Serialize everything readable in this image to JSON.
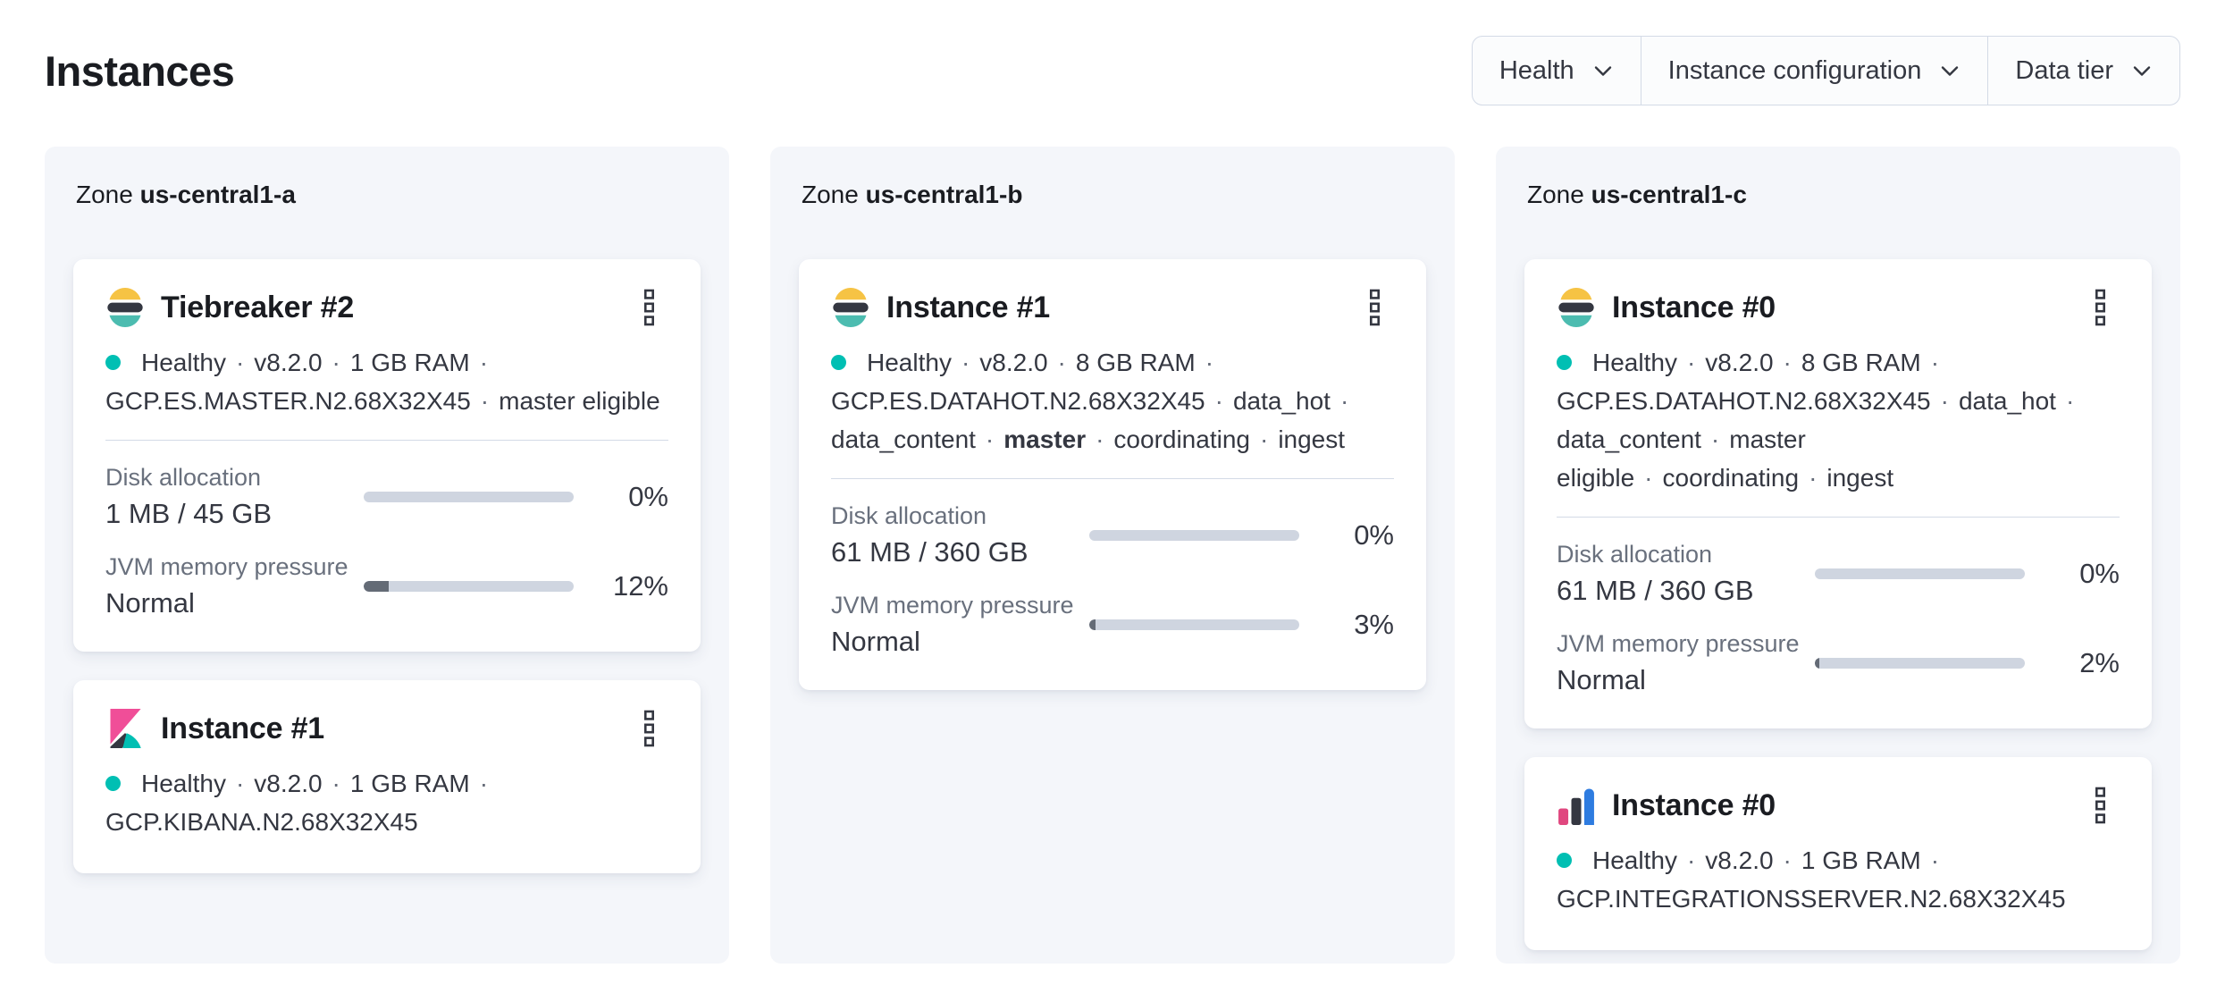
{
  "page": {
    "title": "Instances"
  },
  "filters": [
    {
      "label": "Health",
      "icon": "chevron-down"
    },
    {
      "label": "Instance configuration",
      "icon": "chevron-down"
    },
    {
      "label": "Data tier",
      "icon": "chevron-down"
    }
  ],
  "colors": {
    "healthy_dot": "#00BFB3",
    "progress_track": "#CFD5E0",
    "progress_fill": "#646B76",
    "panel_bg": "#F4F6FA",
    "es_logo_yellow": "#F6C344",
    "es_logo_dark": "#343741",
    "es_logo_teal": "#4CBCB0",
    "kibana_pink": "#F04E98",
    "kibana_dark": "#343741",
    "kibana_teal": "#00BFB3",
    "intserver_pink": "#E0477F",
    "intserver_dark": "#343741",
    "intserver_blue": "#2E7CE0"
  },
  "zones": [
    {
      "label_prefix": "Zone",
      "name": "us-central1-a",
      "cards": [
        {
          "icon": "elasticsearch-logo",
          "title": "Tiebreaker #2",
          "status_lines": [
            {
              "health_dot": true,
              "trailing_separator": true,
              "segments": [
                {
                  "text": "Healthy"
                },
                {
                  "text": "v8.2.0"
                },
                {
                  "text": "1 GB RAM"
                }
              ]
            },
            {
              "health_dot": false,
              "trailing_separator": false,
              "segments": [
                {
                  "text": "GCP.ES.MASTER.N2.68X32X45"
                },
                {
                  "text": "master eligible"
                }
              ]
            }
          ],
          "metrics": [
            {
              "label": "Disk allocation",
              "value": "1 MB / 45 GB",
              "percent_label": "0%",
              "percent_fill": 0
            },
            {
              "label": "JVM memory pressure",
              "value": "Normal",
              "percent_label": "12%",
              "percent_fill": 12
            }
          ]
        },
        {
          "icon": "kibana-logo",
          "title": "Instance #1",
          "status_lines": [
            {
              "health_dot": true,
              "trailing_separator": true,
              "segments": [
                {
                  "text": "Healthy"
                },
                {
                  "text": "v8.2.0"
                },
                {
                  "text": "1 GB RAM"
                }
              ]
            },
            {
              "health_dot": false,
              "trailing_separator": false,
              "segments": [
                {
                  "text": "GCP.KIBANA.N2.68X32X45"
                }
              ]
            }
          ],
          "metrics": []
        }
      ]
    },
    {
      "label_prefix": "Zone",
      "name": "us-central1-b",
      "cards": [
        {
          "icon": "elasticsearch-logo",
          "title": "Instance #1",
          "status_lines": [
            {
              "health_dot": true,
              "trailing_separator": true,
              "segments": [
                {
                  "text": "Healthy"
                },
                {
                  "text": "v8.2.0"
                },
                {
                  "text": "8 GB RAM"
                }
              ]
            },
            {
              "health_dot": false,
              "trailing_separator": true,
              "segments": [
                {
                  "text": "GCP.ES.DATAHOT.N2.68X32X45"
                },
                {
                  "text": "data_hot"
                }
              ]
            },
            {
              "health_dot": false,
              "trailing_separator": false,
              "segments": [
                {
                  "text": "data_content"
                },
                {
                  "text": "master",
                  "bold": true
                },
                {
                  "text": "coordinating"
                },
                {
                  "text": "ingest"
                }
              ]
            }
          ],
          "metrics": [
            {
              "label": "Disk allocation",
              "value": "61 MB / 360 GB",
              "percent_label": "0%",
              "percent_fill": 0
            },
            {
              "label": "JVM memory pressure",
              "value": "Normal",
              "percent_label": "3%",
              "percent_fill": 3
            }
          ]
        }
      ]
    },
    {
      "label_prefix": "Zone",
      "name": "us-central1-c",
      "cards": [
        {
          "icon": "elasticsearch-logo",
          "title": "Instance #0",
          "status_lines": [
            {
              "health_dot": true,
              "trailing_separator": true,
              "segments": [
                {
                  "text": "Healthy"
                },
                {
                  "text": "v8.2.0"
                },
                {
                  "text": "8 GB RAM"
                }
              ]
            },
            {
              "health_dot": false,
              "trailing_separator": true,
              "segments": [
                {
                  "text": "GCP.ES.DATAHOT.N2.68X32X45"
                },
                {
                  "text": "data_hot"
                }
              ]
            },
            {
              "health_dot": false,
              "trailing_separator": false,
              "segments": [
                {
                  "text": "data_content"
                },
                {
                  "text": "master eligible"
                },
                {
                  "text": "coordinating"
                },
                {
                  "text": "ingest"
                }
              ]
            }
          ],
          "metrics": [
            {
              "label": "Disk allocation",
              "value": "61 MB / 360 GB",
              "percent_label": "0%",
              "percent_fill": 0
            },
            {
              "label": "JVM memory pressure",
              "value": "Normal",
              "percent_label": "2%",
              "percent_fill": 2
            }
          ]
        },
        {
          "icon": "integrations-server-logo",
          "title": "Instance #0",
          "status_lines": [
            {
              "health_dot": true,
              "trailing_separator": true,
              "segments": [
                {
                  "text": "Healthy"
                },
                {
                  "text": "v8.2.0"
                },
                {
                  "text": "1 GB RAM"
                }
              ]
            },
            {
              "health_dot": false,
              "trailing_separator": false,
              "segments": [
                {
                  "text": "GCP.INTEGRATIONSSERVER.N2.68X32X45"
                }
              ]
            }
          ],
          "metrics": []
        }
      ]
    }
  ]
}
